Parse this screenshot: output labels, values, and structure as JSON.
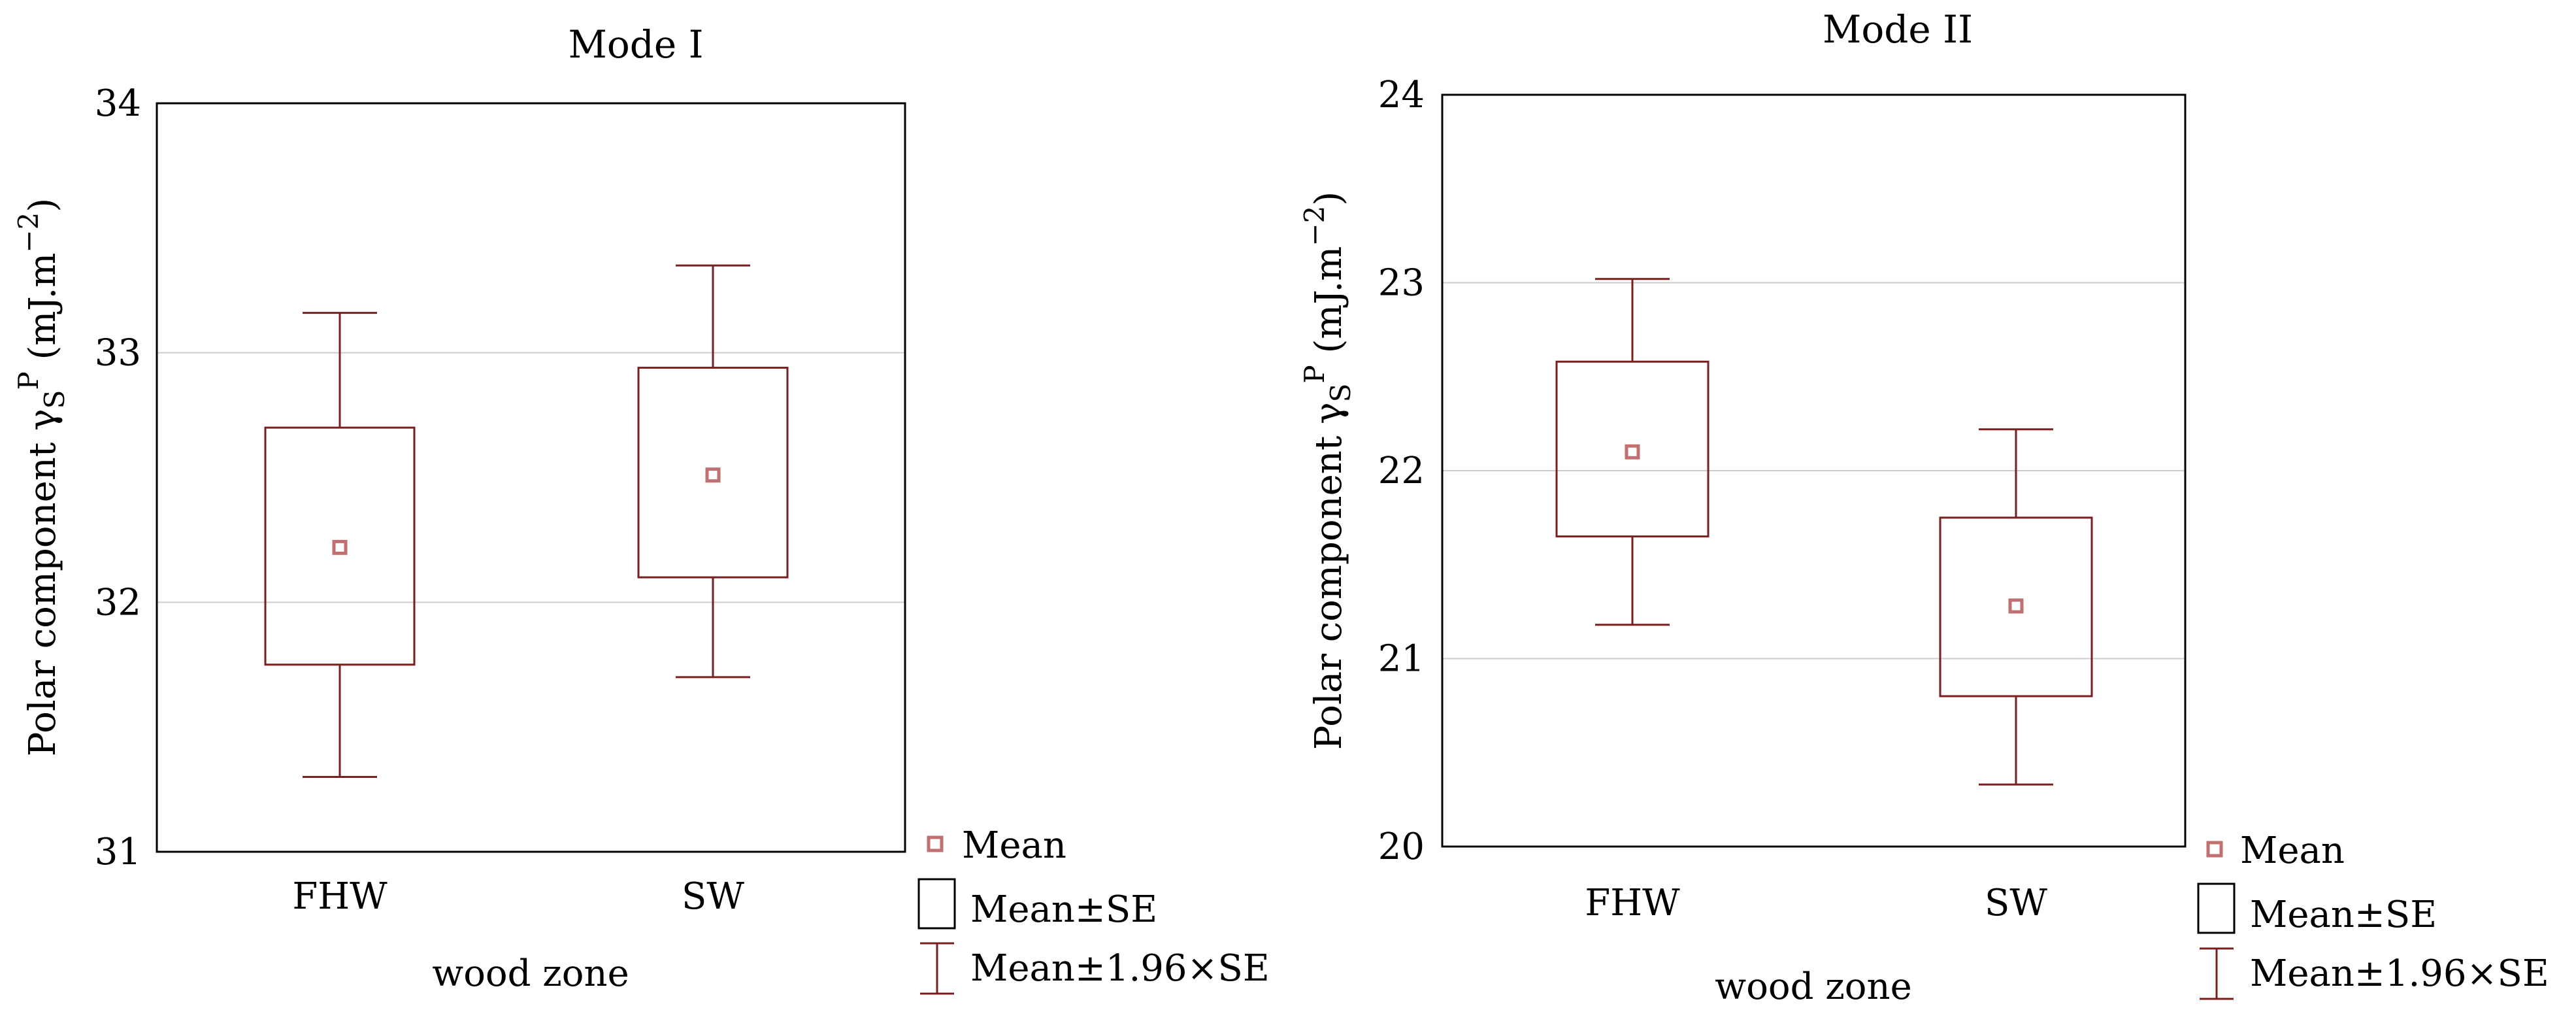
{
  "colors": {
    "mark": "#7a1f1f",
    "mean_marker": "#c07070",
    "grid": "#cccccc",
    "frame": "#000000"
  },
  "chart_data": [
    {
      "type": "box",
      "title": "Mode I",
      "xlabel": "wood zone",
      "ylabel": "Polar component γ",
      "ylabel_sub": "S",
      "ylabel_sup": "P",
      "ylabel_unit": " (mJ.m",
      "ylabel_unit_sup": "−2",
      "ylabel_close": ")",
      "categories": [
        "FHW",
        "SW"
      ],
      "mean": [
        32.22,
        32.51
      ],
      "mean_minus_se": [
        31.75,
        32.1
      ],
      "mean_plus_se": [
        32.7,
        32.94
      ],
      "mean_minus_196se": [
        31.3,
        31.7
      ],
      "mean_plus_196se": [
        33.16,
        33.35
      ],
      "ylim": [
        31,
        34
      ],
      "yticks": [
        "31",
        "32",
        "33",
        "34"
      ],
      "grid": true,
      "legend": {
        "position": "bottom-right",
        "items": [
          "Mean",
          "Mean±SE",
          "Mean±1.96×SE"
        ]
      }
    },
    {
      "type": "box",
      "title": "Mode II",
      "xlabel": "wood zone",
      "ylabel": "Polar component γ",
      "ylabel_sub": "S",
      "ylabel_sup": "P",
      "ylabel_unit": " (mJ.m",
      "ylabel_unit_sup": "−2",
      "ylabel_close": ")",
      "categories": [
        "FHW",
        "SW"
      ],
      "mean": [
        22.1,
        21.28
      ],
      "mean_minus_se": [
        21.65,
        20.8
      ],
      "mean_plus_se": [
        22.58,
        21.75
      ],
      "mean_minus_196se": [
        21.18,
        20.33
      ],
      "mean_plus_196se": [
        23.02,
        22.22
      ],
      "ylim": [
        20,
        24
      ],
      "yticks": [
        "20",
        "21",
        "22",
        "23",
        "24"
      ],
      "grid": true,
      "legend": {
        "position": "bottom-right",
        "items": [
          "Mean",
          "Mean±SE",
          "Mean±1.96×SE"
        ]
      }
    }
  ]
}
